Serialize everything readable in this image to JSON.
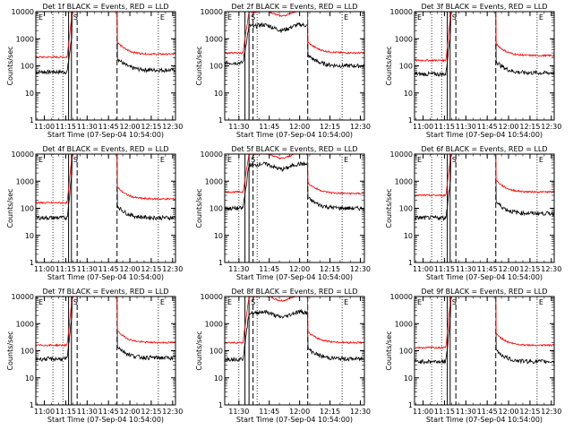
{
  "figure": {
    "ylabel": "Counts/sec",
    "xlabel": "Start Time (07-Sep-04 10:54:00)",
    "y_tick_labels": [
      "1",
      "10",
      "100",
      "1000",
      "10000"
    ],
    "x_tick_labels": [
      "11:00",
      "11:15",
      "11:30",
      "11:45",
      "12:00",
      "12:15",
      "12:30"
    ],
    "marker_labels": {
      "E_left": "E",
      "S": "S",
      "E_right": "E"
    },
    "colors": {
      "events": "#000000",
      "lld": "#ff0000"
    }
  },
  "chart_data": [
    {
      "type": "line",
      "title": "Det 1f BLACK = Events, RED = LLD",
      "xlabel": "Start Time (07-Sep-04 10:54:00)",
      "ylabel": "Counts/sec",
      "yscale": "log",
      "ylim": [
        1,
        10000
      ],
      "x_range": [
        "10:54",
        "12:32"
      ],
      "x_ticks": [
        "11:00",
        "11:15",
        "11:30",
        "11:45",
        "12:00",
        "12:15",
        "12:30"
      ],
      "markers": {
        "dotted": [
          "11:06",
          "11:13",
          "12:20"
        ],
        "solid": [
          "11:17",
          "11:19"
        ],
        "dashed": [
          "11:23",
          "11:51"
        ]
      },
      "series": [
        {
          "name": "Events",
          "color": "#000000",
          "base": 60,
          "spike": "narrow",
          "peak": 1500,
          "after": 70
        },
        {
          "name": "LLD",
          "color": "#ff0000",
          "base": 210,
          "spike": "narrow",
          "peak": 10000,
          "after": 270
        }
      ]
    },
    {
      "type": "line",
      "title": "Det 2f BLACK = Events, RED = LLD",
      "xlabel": "Start Time (07-Sep-04 10:54:00)",
      "ylabel": "Counts/sec",
      "yscale": "log",
      "ylim": [
        1,
        10000
      ],
      "x_range": [
        "11:23",
        "12:32"
      ],
      "x_ticks": [
        "11:30",
        "11:45",
        "12:00",
        "12:15",
        "12:30"
      ],
      "markers": {
        "dotted": [
          "11:30",
          "11:39",
          "12:21"
        ],
        "solid": [
          "11:33",
          "11:35"
        ],
        "dashed": [
          "11:37",
          "12:04"
        ]
      },
      "series": [
        {
          "name": "Events",
          "color": "#000000",
          "base": 130,
          "spike": "broad",
          "peak": 3000,
          "after": 100
        },
        {
          "name": "LLD",
          "color": "#ff0000",
          "base": 300,
          "spike": "broad",
          "peak": 10000,
          "after": 300
        }
      ]
    },
    {
      "type": "line",
      "title": "Det 3f BLACK = Events, RED = LLD",
      "xlabel": "Start Time (07-Sep-04 10:54:00)",
      "ylabel": "Counts/sec",
      "yscale": "log",
      "ylim": [
        1,
        10000
      ],
      "x_range": [
        "10:54",
        "12:32"
      ],
      "x_ticks": [
        "11:00",
        "11:15",
        "11:30",
        "11:45",
        "12:00",
        "12:15",
        "12:30"
      ],
      "markers": {
        "dotted": [
          "11:06",
          "11:13",
          "12:20"
        ],
        "solid": [
          "11:17",
          "11:19"
        ],
        "dashed": [
          "11:23",
          "11:51"
        ]
      },
      "series": [
        {
          "name": "Events",
          "color": "#000000",
          "base": 50,
          "spike": "narrow",
          "peak": 2500,
          "after": 55
        },
        {
          "name": "LLD",
          "color": "#ff0000",
          "base": 160,
          "spike": "narrow",
          "peak": 10000,
          "after": 240
        }
      ]
    },
    {
      "type": "line",
      "title": "Det 4f BLACK = Events, RED = LLD",
      "xlabel": "Start Time (07-Sep-04 10:54:00)",
      "ylabel": "Counts/sec",
      "yscale": "log",
      "ylim": [
        1,
        10000
      ],
      "x_range": [
        "10:54",
        "12:32"
      ],
      "x_ticks": [
        "11:00",
        "11:15",
        "11:30",
        "11:45",
        "12:00",
        "12:15",
        "12:30"
      ],
      "markers": {
        "dotted": [
          "11:06",
          "11:13",
          "12:20"
        ],
        "solid": [
          "11:17",
          "11:19"
        ],
        "dashed": [
          "11:23",
          "11:51"
        ]
      },
      "series": [
        {
          "name": "Events",
          "color": "#000000",
          "base": 45,
          "spike": "narrow",
          "peak": 2500,
          "after": 45
        },
        {
          "name": "LLD",
          "color": "#ff0000",
          "base": 160,
          "spike": "narrow",
          "peak": 10000,
          "after": 220
        }
      ]
    },
    {
      "type": "line",
      "title": "Det 5f BLACK = Events, RED = LLD",
      "xlabel": "Start Time (07-Sep-04 10:54:00)",
      "ylabel": "Counts/sec",
      "yscale": "log",
      "ylim": [
        1,
        10000
      ],
      "x_range": [
        "11:23",
        "12:32"
      ],
      "x_ticks": [
        "11:30",
        "11:45",
        "12:00",
        "12:15",
        "12:30"
      ],
      "markers": {
        "dotted": [
          "11:30",
          "11:39",
          "12:21"
        ],
        "solid": [
          "11:33",
          "11:35"
        ],
        "dashed": [
          "11:37",
          "12:04"
        ]
      },
      "series": [
        {
          "name": "Events",
          "color": "#000000",
          "base": 100,
          "spike": "broad",
          "peak": 4000,
          "after": 100
        },
        {
          "name": "LLD",
          "color": "#ff0000",
          "base": 400,
          "spike": "broad",
          "peak": 10000,
          "after": 350
        }
      ]
    },
    {
      "type": "line",
      "title": "Det 6f BLACK = Events, RED = LLD",
      "xlabel": "Start Time (07-Sep-04 10:54:00)",
      "ylabel": "Counts/sec",
      "yscale": "log",
      "ylim": [
        1,
        10000
      ],
      "x_range": [
        "10:54",
        "12:32"
      ],
      "x_ticks": [
        "11:00",
        "11:15",
        "11:30",
        "11:45",
        "12:00",
        "12:15",
        "12:30"
      ],
      "markers": {
        "dotted": [
          "11:06",
          "11:13",
          "12:20"
        ],
        "solid": [
          "11:17",
          "11:19"
        ],
        "dashed": [
          "11:23",
          "11:51"
        ]
      },
      "series": [
        {
          "name": "Events",
          "color": "#000000",
          "base": 45,
          "spike": "narrow",
          "peak": 1500,
          "after": 65
        },
        {
          "name": "LLD",
          "color": "#ff0000",
          "base": 300,
          "spike": "narrow",
          "peak": 10000,
          "after": 400
        }
      ]
    },
    {
      "type": "line",
      "title": "Det 7f BLACK = Events, RED = LLD",
      "xlabel": "Start Time (07-Sep-04 10:54:00)",
      "ylabel": "Counts/sec",
      "yscale": "log",
      "ylim": [
        1,
        10000
      ],
      "x_range": [
        "10:54",
        "12:32"
      ],
      "x_ticks": [
        "11:00",
        "11:15",
        "11:30",
        "11:45",
        "12:00",
        "12:15",
        "12:30"
      ],
      "markers": {
        "dotted": [
          "11:06",
          "11:13",
          "12:20"
        ],
        "solid": [
          "11:17",
          "11:19"
        ],
        "dashed": [
          "11:23",
          "11:51"
        ]
      },
      "series": [
        {
          "name": "Events",
          "color": "#000000",
          "base": 50,
          "spike": "narrow",
          "peak": 2500,
          "after": 55
        },
        {
          "name": "LLD",
          "color": "#ff0000",
          "base": 160,
          "spike": "narrow",
          "peak": 10000,
          "after": 200
        }
      ]
    },
    {
      "type": "line",
      "title": "Det 8f BLACK = Events, RED = LLD",
      "xlabel": "Start Time (07-Sep-04 10:54:00)",
      "ylabel": "Counts/sec",
      "yscale": "log",
      "ylim": [
        1,
        10000
      ],
      "x_range": [
        "11:23",
        "12:32"
      ],
      "x_ticks": [
        "11:30",
        "11:45",
        "12:00",
        "12:15",
        "12:30"
      ],
      "markers": {
        "dotted": [
          "11:30",
          "11:39",
          "12:21"
        ],
        "solid": [
          "11:33",
          "11:35"
        ],
        "dashed": [
          "11:37",
          "12:04"
        ]
      },
      "series": [
        {
          "name": "Events",
          "color": "#000000",
          "base": 50,
          "spike": "broad",
          "peak": 2500,
          "after": 50
        },
        {
          "name": "LLD",
          "color": "#ff0000",
          "base": 200,
          "spike": "broad",
          "peak": 10000,
          "after": 200
        }
      ]
    },
    {
      "type": "line",
      "title": "Det 9f BLACK = Events, RED = LLD",
      "xlabel": "Start Time (07-Sep-04 10:54:00)",
      "ylabel": "Counts/sec",
      "yscale": "log",
      "ylim": [
        1,
        10000
      ],
      "x_range": [
        "10:54",
        "12:32"
      ],
      "x_ticks": [
        "11:00",
        "11:15",
        "11:30",
        "11:45",
        "12:00",
        "12:15",
        "12:30"
      ],
      "markers": {
        "dotted": [
          "11:06",
          "11:13",
          "12:20"
        ],
        "solid": [
          "11:17",
          "11:19"
        ],
        "dashed": [
          "11:23",
          "11:51"
        ]
      },
      "series": [
        {
          "name": "Events",
          "color": "#000000",
          "base": 40,
          "spike": "narrow",
          "peak": 2500,
          "after": 40
        },
        {
          "name": "LLD",
          "color": "#ff0000",
          "base": 130,
          "spike": "narrow",
          "peak": 10000,
          "after": 160
        }
      ]
    }
  ]
}
